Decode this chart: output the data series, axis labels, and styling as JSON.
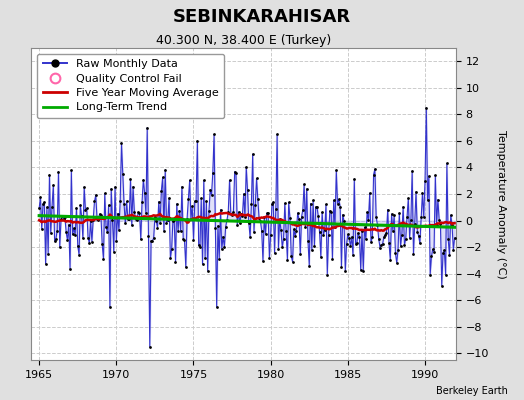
{
  "title": "SEBINKARAHISAR",
  "subtitle": "40.300 N, 38.400 E (Turkey)",
  "ylabel": "Temperature Anomaly (°C)",
  "credit": "Berkeley Earth",
  "xlim": [
    1964.5,
    1992.0
  ],
  "ylim": [
    -10.5,
    13
  ],
  "yticks": [
    -10,
    -8,
    -6,
    -4,
    -2,
    0,
    2,
    4,
    6,
    8,
    10,
    12
  ],
  "xticks": [
    1965,
    1970,
    1975,
    1980,
    1985,
    1990
  ],
  "fig_bg_color": "#e0e0e0",
  "plot_bg_color": "#ffffff",
  "grid_color": "#cccccc",
  "line_color": "#3333cc",
  "fill_color": "#aaaaee",
  "moving_avg_color": "#cc0000",
  "trend_color": "#00aa00",
  "marker_color": "#000000",
  "title_fontsize": 13,
  "subtitle_fontsize": 9,
  "label_fontsize": 8,
  "tick_fontsize": 8,
  "legend_fontsize": 8
}
